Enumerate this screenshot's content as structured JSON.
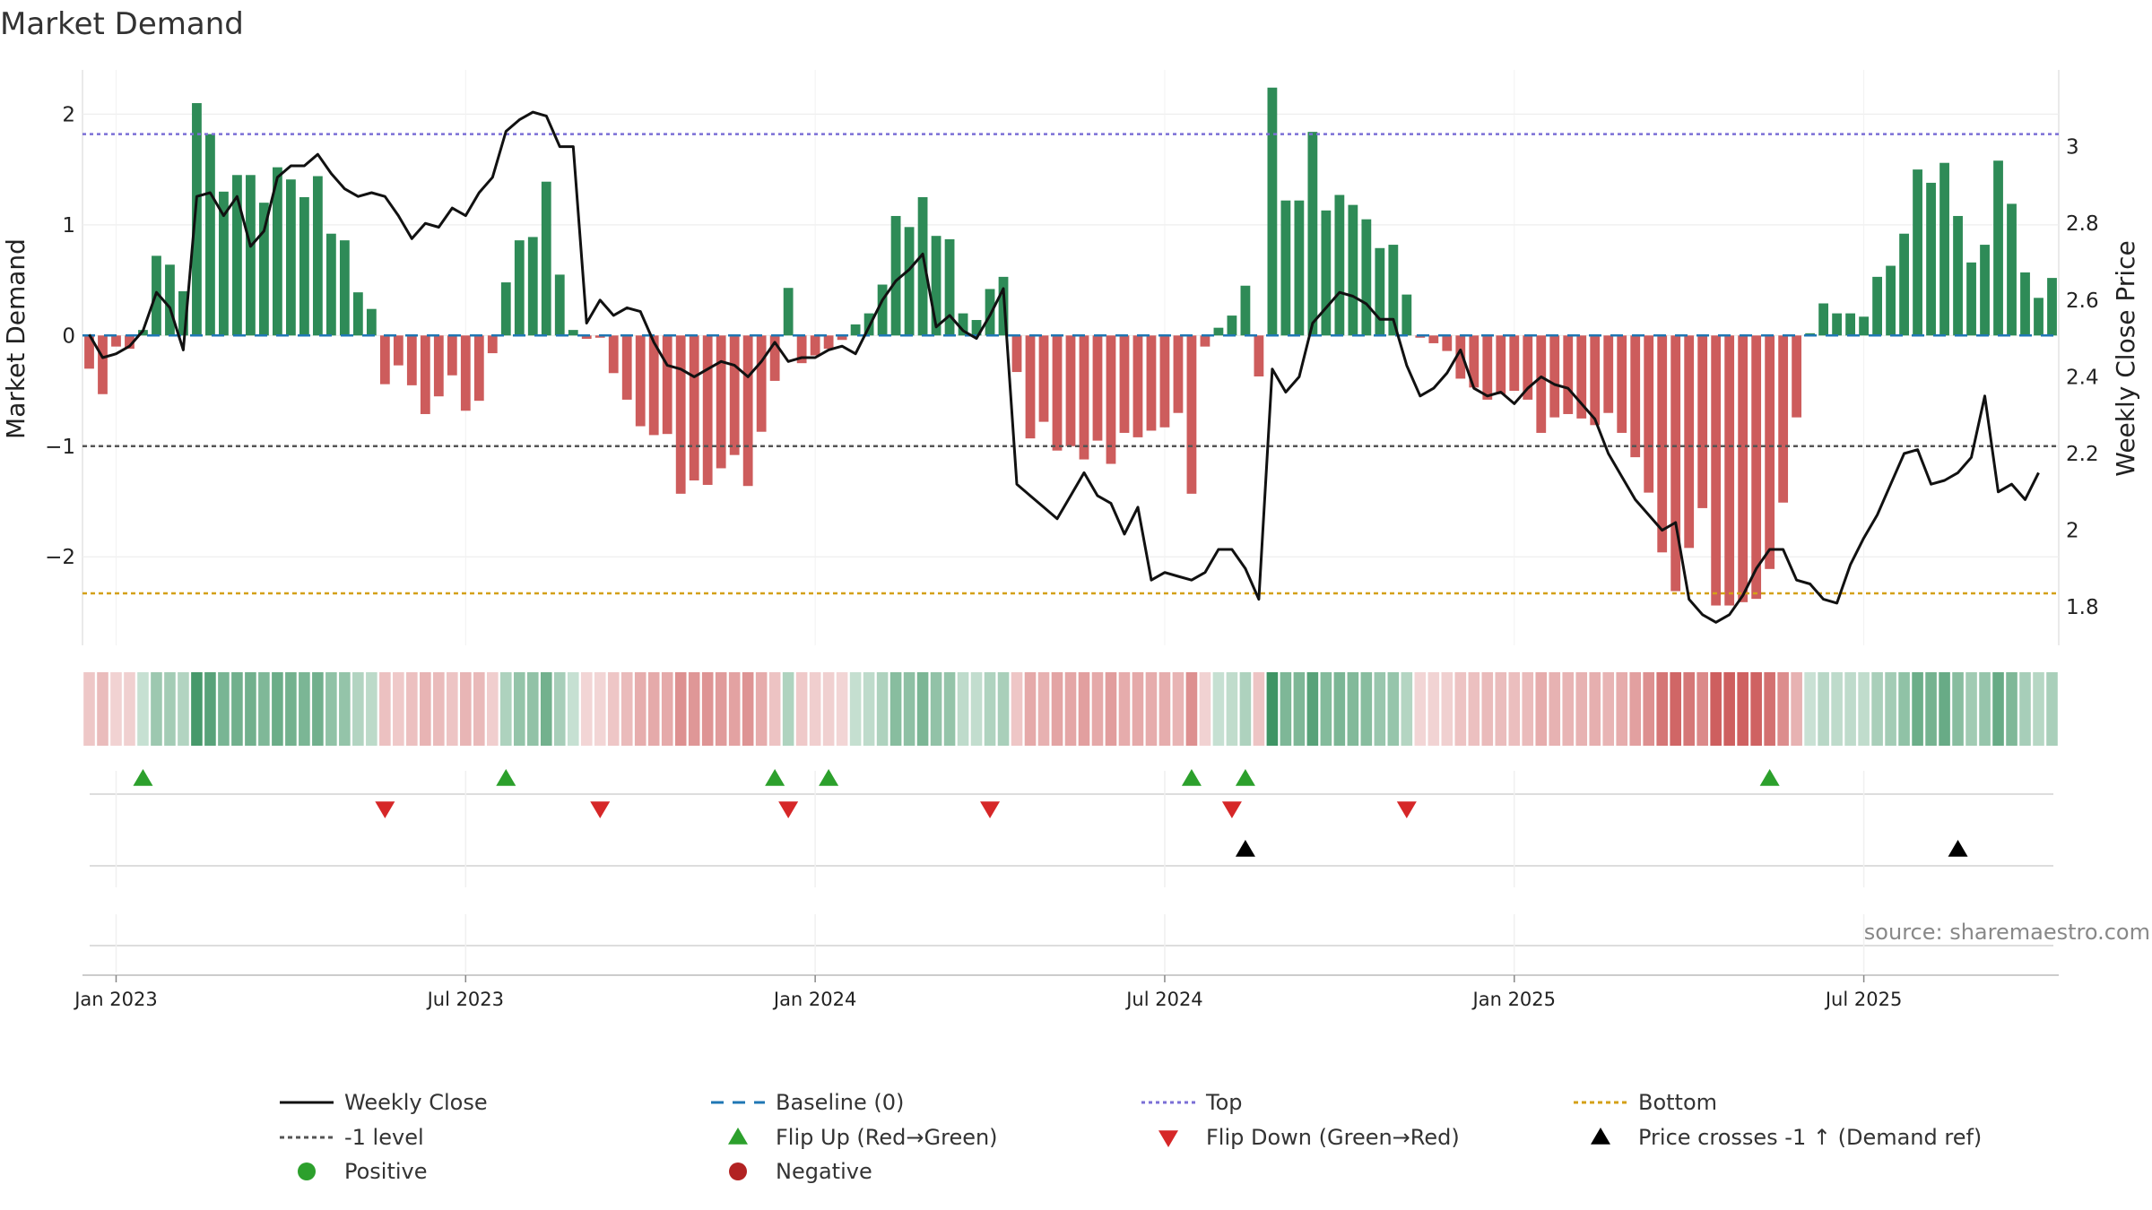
{
  "chart_data": {
    "type": "bar",
    "title": "Market Demand",
    "ylabel_left": "Market Demand",
    "ylabel_right": "Weekly Close Price",
    "ylim_left": [
      -2.8,
      2.4
    ],
    "ylim_right": [
      1.7,
      3.2
    ],
    "left_ticks": [
      2,
      1,
      0,
      -1,
      -2
    ],
    "left_tick_labels": [
      "2",
      "1",
      "0",
      "−1",
      "−2"
    ],
    "right_ticks": [
      3,
      2.8,
      2.6,
      2.4,
      2.2,
      2,
      1.8
    ],
    "right_tick_labels": [
      "3",
      "2.8",
      "2.6",
      "2.4",
      "2.2",
      "2",
      "1.8"
    ],
    "x_tick_weeks": [
      2,
      28,
      54,
      80,
      106,
      132
    ],
    "x_tick_labels": [
      "Jan 2023",
      "Jul 2023",
      "Jan 2024",
      "Jul 2024",
      "Jan 2025",
      "Jul 2025"
    ],
    "reference_lines": {
      "top": 1.82,
      "minus_one": -1.0,
      "bottom": -2.33,
      "baseline": 0
    },
    "colors": {
      "positive_bar": "#2e8b57",
      "negative_bar": "#cd5c5c",
      "close_line": "#111111",
      "baseline": "#1f77b4",
      "top": "#7b6fd6",
      "minus_one": "#555555",
      "bottom": "#d4a017",
      "flip_up": "#2ca02c",
      "flip_down": "#d62728",
      "price_cross": "#000000",
      "positive_marker": "#2ca02c",
      "negative_marker": "#b22222"
    },
    "series": [
      {
        "name": "Market Demand",
        "values": [
          -0.3,
          -0.53,
          -0.1,
          -0.12,
          0.05,
          0.72,
          0.64,
          0.4,
          2.1,
          1.82,
          1.3,
          1.45,
          1.45,
          1.2,
          1.52,
          1.41,
          1.25,
          1.44,
          0.92,
          0.86,
          0.39,
          0.24,
          -0.44,
          -0.27,
          -0.45,
          -0.71,
          -0.55,
          -0.36,
          -0.68,
          -0.59,
          -0.16,
          0.48,
          0.86,
          0.89,
          1.39,
          0.55,
          0.05,
          -0.03,
          -0.02,
          -0.34,
          -0.58,
          -0.82,
          -0.9,
          -0.89,
          -1.43,
          -1.31,
          -1.35,
          -1.2,
          -1.08,
          -1.36,
          -0.87,
          -0.41,
          0.43,
          -0.25,
          -0.18,
          -0.12,
          -0.04,
          0.1,
          0.2,
          0.46,
          1.08,
          0.98,
          1.25,
          0.9,
          0.87,
          0.2,
          0.14,
          0.42,
          0.53,
          -0.33,
          -0.93,
          -0.78,
          -1.04,
          -1.0,
          -1.12,
          -0.95,
          -1.16,
          -0.88,
          -0.92,
          -0.86,
          -0.83,
          -0.7,
          -1.43,
          -0.1,
          0.07,
          0.18,
          0.45,
          -0.37,
          2.24,
          1.22,
          1.22,
          1.84,
          1.13,
          1.27,
          1.18,
          1.05,
          0.79,
          0.82,
          0.37,
          -0.02,
          -0.07,
          -0.14,
          -0.39,
          -0.47,
          -0.58,
          -0.53,
          -0.5,
          -0.58,
          -0.88,
          -0.74,
          -0.71,
          -0.75,
          -0.81,
          -0.7,
          -0.88,
          -1.1,
          -1.42,
          -1.96,
          -2.31,
          -1.92,
          -1.56,
          -2.44,
          -2.44,
          -2.41,
          -2.38,
          -2.11,
          -1.51,
          -0.74,
          0.02,
          0.29,
          0.2,
          0.2,
          0.17,
          0.53,
          0.63,
          0.92,
          1.5,
          1.38,
          1.56,
          1.08,
          0.66,
          0.82,
          1.58,
          1.19,
          0.57,
          0.34,
          0.52
        ]
      },
      {
        "name": "Weekly Close",
        "values": [
          2.51,
          2.45,
          2.46,
          2.48,
          2.52,
          2.62,
          2.58,
          2.47,
          2.87,
          2.88,
          2.82,
          2.87,
          2.74,
          2.78,
          2.92,
          2.95,
          2.95,
          2.98,
          2.93,
          2.89,
          2.87,
          2.88,
          2.87,
          2.82,
          2.76,
          2.8,
          2.79,
          2.84,
          2.82,
          2.88,
          2.92,
          3.04,
          3.07,
          3.09,
          3.08,
          3.0,
          3.0,
          2.54,
          2.6,
          2.56,
          2.58,
          2.57,
          2.49,
          2.43,
          2.42,
          2.4,
          2.42,
          2.44,
          2.43,
          2.4,
          2.44,
          2.49,
          2.44,
          2.45,
          2.45,
          2.47,
          2.48,
          2.46,
          2.53,
          2.6,
          2.65,
          2.68,
          2.72,
          2.53,
          2.56,
          2.52,
          2.5,
          2.56,
          2.63,
          2.12,
          2.09,
          2.06,
          2.03,
          2.09,
          2.15,
          2.09,
          2.07,
          1.99,
          2.06,
          1.87,
          1.89,
          1.88,
          1.87,
          1.89,
          1.95,
          1.95,
          1.9,
          1.82,
          2.42,
          2.36,
          2.4,
          2.54,
          2.58,
          2.62,
          2.61,
          2.59,
          2.55,
          2.55,
          2.43,
          2.35,
          2.37,
          2.41,
          2.47,
          2.37,
          2.35,
          2.36,
          2.33,
          2.37,
          2.4,
          2.38,
          2.37,
          2.33,
          2.29,
          2.2,
          2.14,
          2.08,
          2.04,
          2.0,
          2.02,
          1.82,
          1.78,
          1.76,
          1.78,
          1.83,
          1.9,
          1.95,
          1.95,
          1.87,
          1.86,
          1.82,
          1.81,
          1.91,
          1.98,
          2.04,
          2.12,
          2.2,
          2.21,
          2.12,
          2.13,
          2.15,
          2.19,
          2.35,
          2.1,
          2.12,
          2.08,
          2.15
        ]
      }
    ],
    "flip_up_weeks": [
      4,
      31,
      51,
      55,
      82,
      86,
      125
    ],
    "flip_down_weeks": [
      22,
      38,
      52,
      67,
      85,
      98
    ],
    "price_cross_weeks": [
      86,
      139
    ],
    "legend": [
      "Weekly Close",
      "Baseline (0)",
      "Top",
      "Bottom",
      "-1 level",
      "Flip Up (Red→Green)",
      "Flip Down (Green→Red)",
      "Price crosses -1 ↑ (Demand ref)",
      "Positive",
      "Negative"
    ]
  },
  "source": "source: sharemaestro.com"
}
